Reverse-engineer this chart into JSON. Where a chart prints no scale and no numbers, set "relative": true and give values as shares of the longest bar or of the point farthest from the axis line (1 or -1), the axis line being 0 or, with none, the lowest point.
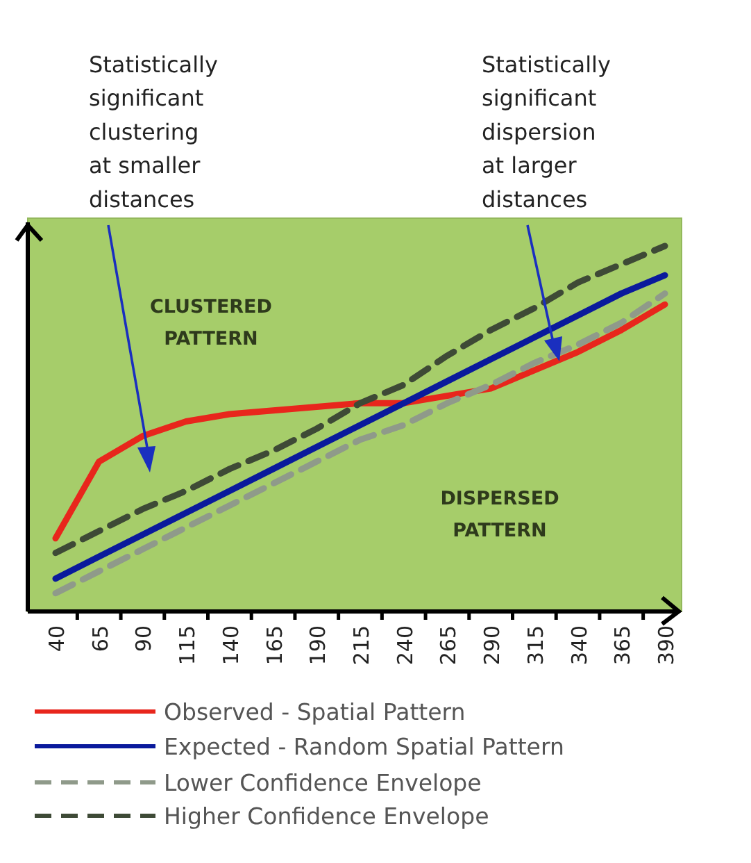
{
  "chart_data": {
    "type": "line",
    "relative": true,
    "categories": [
      "40",
      "65",
      "90",
      "115",
      "140",
      "165",
      "190",
      "215",
      "240",
      "265",
      "290",
      "315",
      "340",
      "365",
      "390"
    ],
    "series": [
      {
        "name": "Observed - Spatial Pattern",
        "color": "#e8261c",
        "line_style": "solid",
        "values": [
          0.2,
          0.41,
          0.48,
          0.52,
          0.54,
          0.55,
          0.56,
          0.57,
          0.57,
          0.59,
          0.61,
          0.66,
          0.71,
          0.77,
          0.84
        ]
      },
      {
        "name": "Expected - Random Spatial Pattern",
        "color": "#0a1a9c",
        "line_style": "solid",
        "values": [
          0.09,
          0.15,
          0.21,
          0.27,
          0.33,
          0.39,
          0.45,
          0.51,
          0.57,
          0.63,
          0.69,
          0.75,
          0.81,
          0.87,
          0.92
        ]
      },
      {
        "name": "Lower Confidence Envelope",
        "color": "#8f9a8a",
        "line_style": "dashed",
        "values": [
          0.05,
          0.11,
          0.17,
          0.23,
          0.29,
          0.35,
          0.41,
          0.47,
          0.51,
          0.57,
          0.62,
          0.68,
          0.73,
          0.79,
          0.87
        ]
      },
      {
        "name": "Higher Confidence Envelope",
        "color": "#3e4a36",
        "line_style": "dashed",
        "values": [
          0.16,
          0.22,
          0.28,
          0.33,
          0.39,
          0.44,
          0.5,
          0.57,
          0.62,
          0.7,
          0.77,
          0.83,
          0.9,
          0.95,
          1
        ]
      }
    ],
    "annotations": [
      "Statistically\nsignificant\nclustering\nat smaller\ndistances",
      "Statistically\nsignificant\ndispersion\nat larger\ndistances",
      "CLUSTERED\nPATTERN",
      "DISPERSED\nPATTERN"
    ],
    "legend": "bottom",
    "marker": "none"
  }
}
